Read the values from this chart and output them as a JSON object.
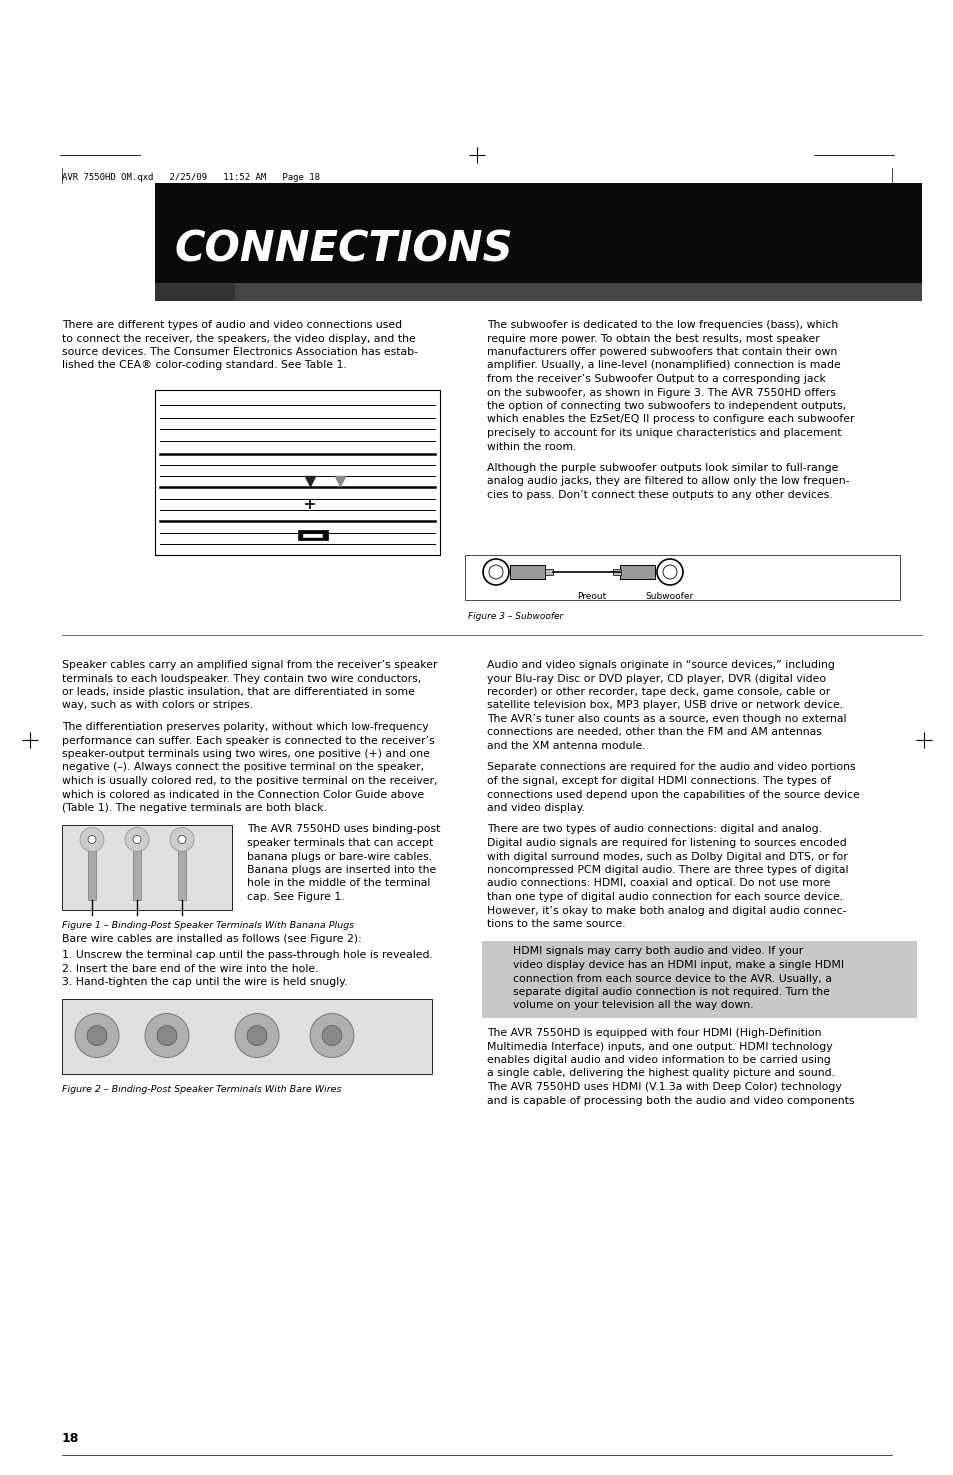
{
  "bg_color": "#ffffff",
  "header_bar_color": "#111111",
  "header_text": "CONNECTIONS",
  "header_text_color": "#ffffff",
  "meta_text": "AVR 7550HD OM.qxd   2/25/09   11:52 AM   Page 18",
  "page_number": "18",
  "para1_col1": "There are different types of audio and video connections used\nto connect the receiver, the speakers, the video display, and the\nsource devices. The Consumer Electronics Association has estab-\nlished the CEA® color-coding standard. See Table 1.",
  "para1_col2": "The subwoofer is dedicated to the low frequencies (bass), which\nrequire more power. To obtain the best results, most speaker\nmanufacturers offer powered subwoofers that contain their own\namplifier. Usually, a line-level (nonamplified) connection is made\nfrom the receiver’s Subwoofer Output to a corresponding jack\non the subwoofer, as shown in Figure 3. The AVR 7550HD offers\nthe option of connecting two subwoofers to independent outputs,\nwhich enables the EzSet/EQ II process to configure each subwoofer\nprecisely to account for its unique characteristics and placement\nwithin the room.",
  "para2_col2": "Although the purple subwoofer outputs look similar to full-range\nanalog audio jacks, they are filtered to allow only the low frequen-\ncies to pass. Don’t connect these outputs to any other devices.",
  "fig3_caption": "Figure 3 – Subwoofer",
  "speaker_col1_para1": "Speaker cables carry an amplified signal from the receiver’s speaker\nterminals to each loudspeaker. They contain two wire conductors,\nor leads, inside plastic insulation, that are differentiated in some\nway, such as with colors or stripes.",
  "speaker_col1_para2": "The differentiation preserves polarity, without which low-frequency\nperformance can suffer. Each speaker is connected to the receiver’s\nspeaker-output terminals using two wires, one positive (+) and one\nnegative (–). Always connect the positive terminal on the speaker,\nwhich is usually colored red, to the positive terminal on the receiver,\nwhich is colored as indicated in the Connection Color Guide above\n(Table 1). The negative terminals are both black.",
  "speaker_col1_para3": "The AVR 7550HD uses binding-post\nspeaker terminals that can accept\nbanana plugs or bare-wire cables.\nBanana plugs are inserted into the\nhole in the middle of the terminal\ncap. See Figure 1.",
  "fig1_caption": "Figure 1 – Binding-Post Speaker Terminals With Banana Plugs",
  "speaker_col1_para4": "Bare wire cables are installed as follows (see Figure 2):",
  "bare_wire_steps": "1. Unscrew the terminal cap until the pass-through hole is revealed.\n2. Insert the bare end of the wire into the hole.\n3. Hand-tighten the cap until the wire is held snugly.",
  "fig2_caption": "Figure 2 – Binding-Post Speaker Terminals With Bare Wires",
  "source_col2_para1": "Audio and video signals originate in “source devices,” including\nyour Blu-ray Disc or DVD player, CD player, DVR (digital video\nrecorder) or other recorder, tape deck, game console, cable or\nsatellite television box, MP3 player, USB drive or network device.\nThe AVR’s tuner also counts as a source, even though no external\nconnections are needed, other than the FM and AM antennas\nand the XM antenna module.",
  "source_col2_para2": "Separate connections are required for the audio and video portions\nof the signal, except for digital HDMI connections. The types of\nconnections used depend upon the capabilities of the source device\nand video display.",
  "audio_col2_para1": "There are two types of audio connections: digital and analog.\nDigital audio signals are required for listening to sources encoded\nwith digital surround modes, such as Dolby Digital and DTS, or for\nnoncompressed PCM digital audio. There are three types of digital\naudio connections: HDMI, coaxial and optical. Do not use more\nthan one type of digital audio connection for each source device.\nHowever, it’s okay to make both analog and digital audio connec-\ntions to the same source.",
  "hdmi_note": "      HDMI signals may carry both audio and video. If your\n      video display device has an HDMI input, make a single HDMI\n      connection from each source device to the AVR. Usually, a\n      separate digital audio connection is not required. Turn the\n      volume on your television all the way down.",
  "hdmi_col2_para1": "The AVR 7550HD is equipped with four HDMI (High-Definition\nMultimedia Interface) inputs, and one output. HDMI technology\nenables digital audio and video information to be carried using\na single cable, delivering the highest quality picture and sound.\nThe AVR 7550HD uses HDMI (V.1.3a with Deep Color) technology\nand is capable of processing both the audio and video components"
}
